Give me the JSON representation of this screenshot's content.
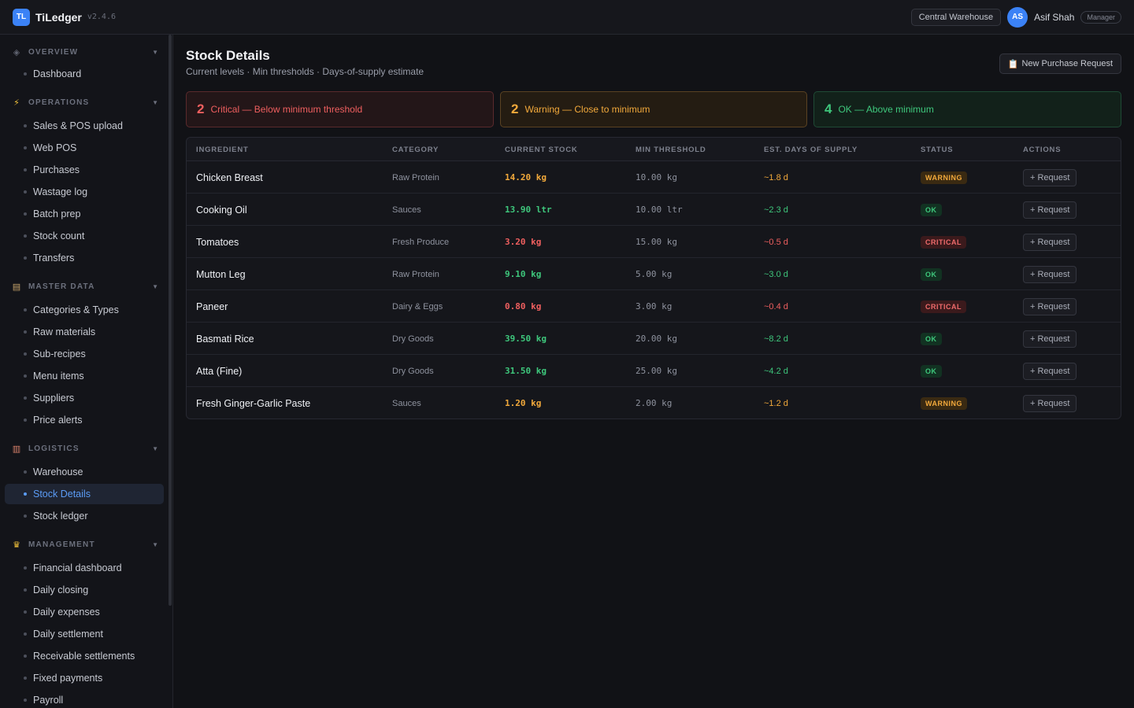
{
  "header": {
    "logo": "TL",
    "app_name": "TiLedger",
    "version": "v2.4.6",
    "warehouse": "Central Warehouse",
    "user_initials": "AS",
    "user_name": "Asif Shah",
    "user_role": "Manager"
  },
  "sidebar": {
    "sections": [
      {
        "title": "OVERVIEW",
        "icon": "diamond-icon",
        "items": [
          "Dashboard"
        ]
      },
      {
        "title": "OPERATIONS",
        "icon": "lightning-icon",
        "items": [
          "Sales & POS upload",
          "Web POS",
          "Purchases",
          "Wastage log",
          "Batch prep",
          "Stock count",
          "Transfers"
        ]
      },
      {
        "title": "MASTER DATA",
        "icon": "clipboard-icon",
        "items": [
          "Categories & Types",
          "Raw materials",
          "Sub-recipes",
          "Menu items",
          "Suppliers",
          "Price alerts"
        ]
      },
      {
        "title": "LOGISTICS",
        "icon": "factory-icon",
        "items": [
          "Warehouse",
          "Stock Details",
          "Stock ledger"
        ]
      },
      {
        "title": "MANAGEMENT",
        "icon": "crown-icon",
        "items": [
          "Financial dashboard",
          "Daily closing",
          "Daily expenses",
          "Daily settlement",
          "Receivable settlements",
          "Fixed payments",
          "Payroll"
        ]
      }
    ],
    "active_item": "Stock Details"
  },
  "page": {
    "title": "Stock Details",
    "subtitle": "Current levels · Min thresholds · Days-of-supply estimate",
    "new_request_label": "New Purchase Request"
  },
  "summary": {
    "critical": {
      "count": "2",
      "label": "Critical — Below minimum threshold"
    },
    "warning": {
      "count": "2",
      "label": "Warning — Close to minimum"
    },
    "ok": {
      "count": "4",
      "label": "OK — Above minimum"
    }
  },
  "table": {
    "columns": [
      "INGREDIENT",
      "CATEGORY",
      "CURRENT STOCK",
      "MIN THRESHOLD",
      "EST. DAYS OF SUPPLY",
      "STATUS",
      "ACTIONS"
    ],
    "rows": [
      {
        "name": "Chicken Breast",
        "category": "Raw Protein",
        "stock": "14.20 kg",
        "min": "10.00 kg",
        "days": "~1.8 d",
        "status": "WARNING",
        "level": "warning",
        "action": "+ Request"
      },
      {
        "name": "Cooking Oil",
        "category": "Sauces",
        "stock": "13.90 ltr",
        "min": "10.00 ltr",
        "days": "~2.3 d",
        "status": "OK",
        "level": "ok",
        "action": "+ Request"
      },
      {
        "name": "Tomatoes",
        "category": "Fresh Produce",
        "stock": "3.20 kg",
        "min": "15.00 kg",
        "days": "~0.5 d",
        "status": "CRITICAL",
        "level": "critical",
        "action": "+ Request"
      },
      {
        "name": "Mutton Leg",
        "category": "Raw Protein",
        "stock": "9.10 kg",
        "min": "5.00 kg",
        "days": "~3.0 d",
        "status": "OK",
        "level": "ok",
        "action": "+ Request"
      },
      {
        "name": "Paneer",
        "category": "Dairy & Eggs",
        "stock": "0.80 kg",
        "min": "3.00 kg",
        "days": "~0.4 d",
        "status": "CRITICAL",
        "level": "critical",
        "action": "+ Request"
      },
      {
        "name": "Basmati Rice",
        "category": "Dry Goods",
        "stock": "39.50 kg",
        "min": "20.00 kg",
        "days": "~8.2 d",
        "status": "OK",
        "level": "ok",
        "action": "+ Request"
      },
      {
        "name": "Atta (Fine)",
        "category": "Dry Goods",
        "stock": "31.50 kg",
        "min": "25.00 kg",
        "days": "~4.2 d",
        "status": "OK",
        "level": "ok",
        "action": "+ Request"
      },
      {
        "name": "Fresh Ginger-Garlic Paste",
        "category": "Sauces",
        "stock": "1.20 kg",
        "min": "2.00 kg",
        "days": "~1.2 d",
        "status": "WARNING",
        "level": "warning",
        "action": "+ Request"
      }
    ]
  },
  "colors": {
    "accent": "#3b82f6",
    "critical": "#ef5f5f",
    "warning": "#f2a93b",
    "ok": "#3ec77c"
  }
}
